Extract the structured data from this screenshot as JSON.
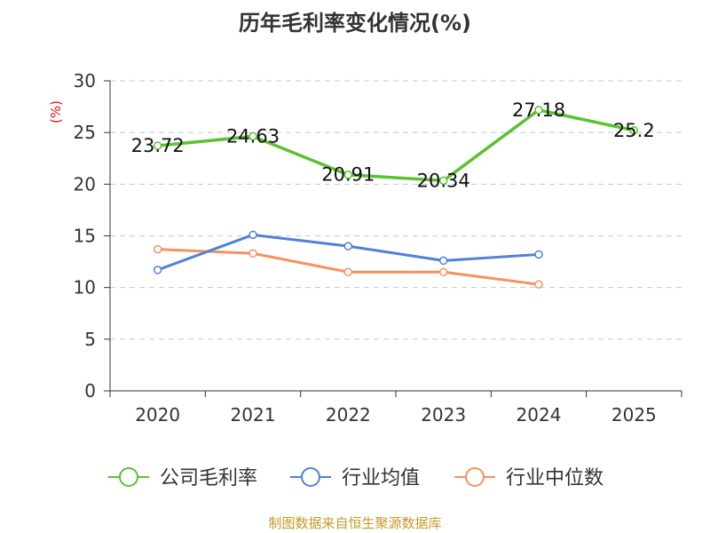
{
  "chart_data": {
    "type": "line",
    "title": "历年毛利率变化情况(%)",
    "ylabel": "(%)",
    "xlabel": "",
    "categories": [
      "2020",
      "2021",
      "2022",
      "2023",
      "2024",
      "2025"
    ],
    "ylim": [
      0,
      30
    ],
    "yticks": [
      0,
      5,
      10,
      15,
      20,
      25,
      30
    ],
    "grid": true,
    "legend_position": "bottom",
    "series": [
      {
        "name": "公司毛利率",
        "color": "#5ac232",
        "values": [
          23.72,
          24.63,
          20.91,
          20.34,
          27.18,
          25.2
        ],
        "labels": [
          "23.72",
          "24.63",
          "20.91",
          "20.34",
          "27.18",
          "25.2"
        ]
      },
      {
        "name": "行业均值",
        "color": "#4f81d9",
        "values": [
          11.7,
          15.1,
          14.0,
          12.6,
          13.2,
          null
        ]
      },
      {
        "name": "行业中位数",
        "color": "#f5925f",
        "values": [
          13.7,
          13.3,
          11.5,
          11.5,
          10.3,
          null
        ]
      }
    ]
  },
  "source_note": "制图数据来自恒生聚源数据库",
  "colors": {
    "ylabel": "#e01010",
    "source": "#c49a2a"
  }
}
